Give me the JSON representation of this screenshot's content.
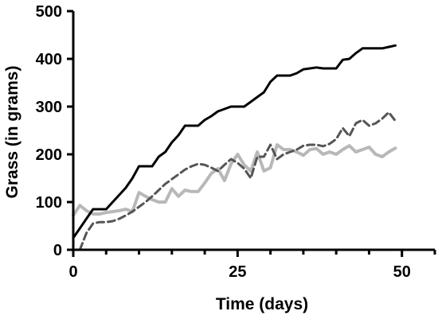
{
  "chart_data": {
    "type": "line",
    "title": "",
    "xlabel": "Time (days)",
    "ylabel": "Grass (in grams)",
    "xlim": [
      0,
      55
    ],
    "ylim": [
      0,
      500
    ],
    "xticks": [
      0,
      25,
      50
    ],
    "yticks": [
      0,
      100,
      200,
      300,
      400,
      500
    ],
    "grid": false,
    "legend": "none",
    "series": [
      {
        "color": "#000000",
        "style": "solid",
        "x": [
          0,
          1,
          2,
          3,
          4,
          5,
          6,
          7,
          8,
          9,
          10,
          11,
          12,
          13,
          14,
          15,
          16,
          17,
          18,
          19,
          20,
          21,
          22,
          23,
          24,
          25,
          26,
          27,
          28,
          29,
          30,
          31,
          32,
          33,
          34,
          35,
          36,
          37,
          38,
          39,
          40,
          41,
          42,
          43,
          44,
          45,
          46,
          47,
          48,
          49
        ],
        "y": [
          25,
          45,
          65,
          85,
          85,
          85,
          100,
          115,
          130,
          150,
          175,
          175,
          175,
          195,
          205,
          225,
          240,
          260,
          260,
          260,
          272,
          280,
          290,
          295,
          300,
          300,
          300,
          310,
          320,
          330,
          352,
          365,
          365,
          365,
          370,
          378,
          380,
          382,
          380,
          380,
          380,
          398,
          400,
          412,
          422,
          422,
          422,
          422,
          425,
          428
        ]
      },
      {
        "color": "#555555",
        "style": "dashed",
        "x": [
          1,
          2,
          3,
          4,
          5,
          6,
          7,
          8,
          9,
          10,
          11,
          12,
          13,
          14,
          15,
          16,
          17,
          18,
          19,
          20,
          21,
          22,
          23,
          24,
          25,
          26,
          27,
          28,
          29,
          30,
          31,
          32,
          33,
          34,
          35,
          36,
          37,
          38,
          39,
          40,
          41,
          42,
          43,
          44,
          45,
          46,
          47,
          48,
          49
        ],
        "y": [
          0,
          35,
          55,
          58,
          58,
          60,
          65,
          72,
          80,
          90,
          100,
          112,
          125,
          138,
          148,
          158,
          168,
          175,
          180,
          178,
          172,
          165,
          178,
          190,
          182,
          170,
          150,
          195,
          195,
          220,
          190,
          200,
          205,
          210,
          218,
          220,
          220,
          217,
          222,
          232,
          255,
          238,
          265,
          272,
          260,
          265,
          275,
          288,
          270
        ]
      },
      {
        "color": "#b8b8b8",
        "style": "solid",
        "x": [
          0,
          1,
          2,
          3,
          4,
          5,
          6,
          7,
          8,
          9,
          10,
          11,
          12,
          13,
          14,
          15,
          16,
          17,
          18,
          19,
          20,
          21,
          22,
          23,
          24,
          25,
          26,
          27,
          28,
          29,
          30,
          31,
          32,
          33,
          34,
          35,
          36,
          37,
          38,
          39,
          40,
          41,
          42,
          43,
          44,
          45,
          46,
          47,
          48,
          49
        ],
        "y": [
          72,
          93,
          82,
          75,
          75,
          78,
          80,
          82,
          85,
          80,
          120,
          112,
          105,
          100,
          100,
          128,
          112,
          125,
          122,
          122,
          140,
          160,
          170,
          145,
          180,
          200,
          178,
          165,
          205,
          165,
          172,
          220,
          210,
          210,
          205,
          198,
          210,
          212,
          200,
          205,
          200,
          210,
          218,
          205,
          210,
          215,
          200,
          195,
          205,
          213
        ]
      }
    ]
  }
}
